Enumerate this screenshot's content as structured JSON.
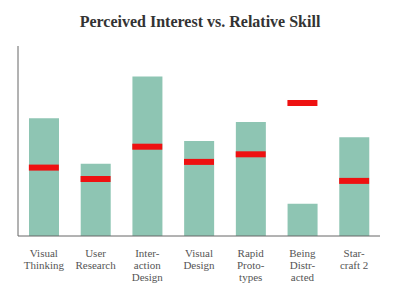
{
  "chart_data": {
    "type": "bar",
    "title": "Perceived Interest vs. Relative Skill",
    "categories": [
      "Visual\nThinking",
      "User\nResearch",
      "Inter-\naction\nDesign",
      "Visual\nDesign",
      "Rapid\nProto-\ntypes",
      "Being\nDistr-\nacted",
      "Star-\ncraft 2"
    ],
    "series": [
      {
        "type": "bar",
        "color": "#8ec5b3",
        "values": [
          0.62,
          0.38,
          0.84,
          0.5,
          0.6,
          0.17,
          0.52
        ]
      },
      {
        "type": "scatter",
        "marker": "hline",
        "color": "#ee1111",
        "values": [
          0.36,
          0.3,
          0.47,
          0.39,
          0.43,
          0.7,
          0.29
        ]
      }
    ],
    "ylim": [
      0,
      1.0
    ],
    "grid": false,
    "tick_labels": "x"
  }
}
